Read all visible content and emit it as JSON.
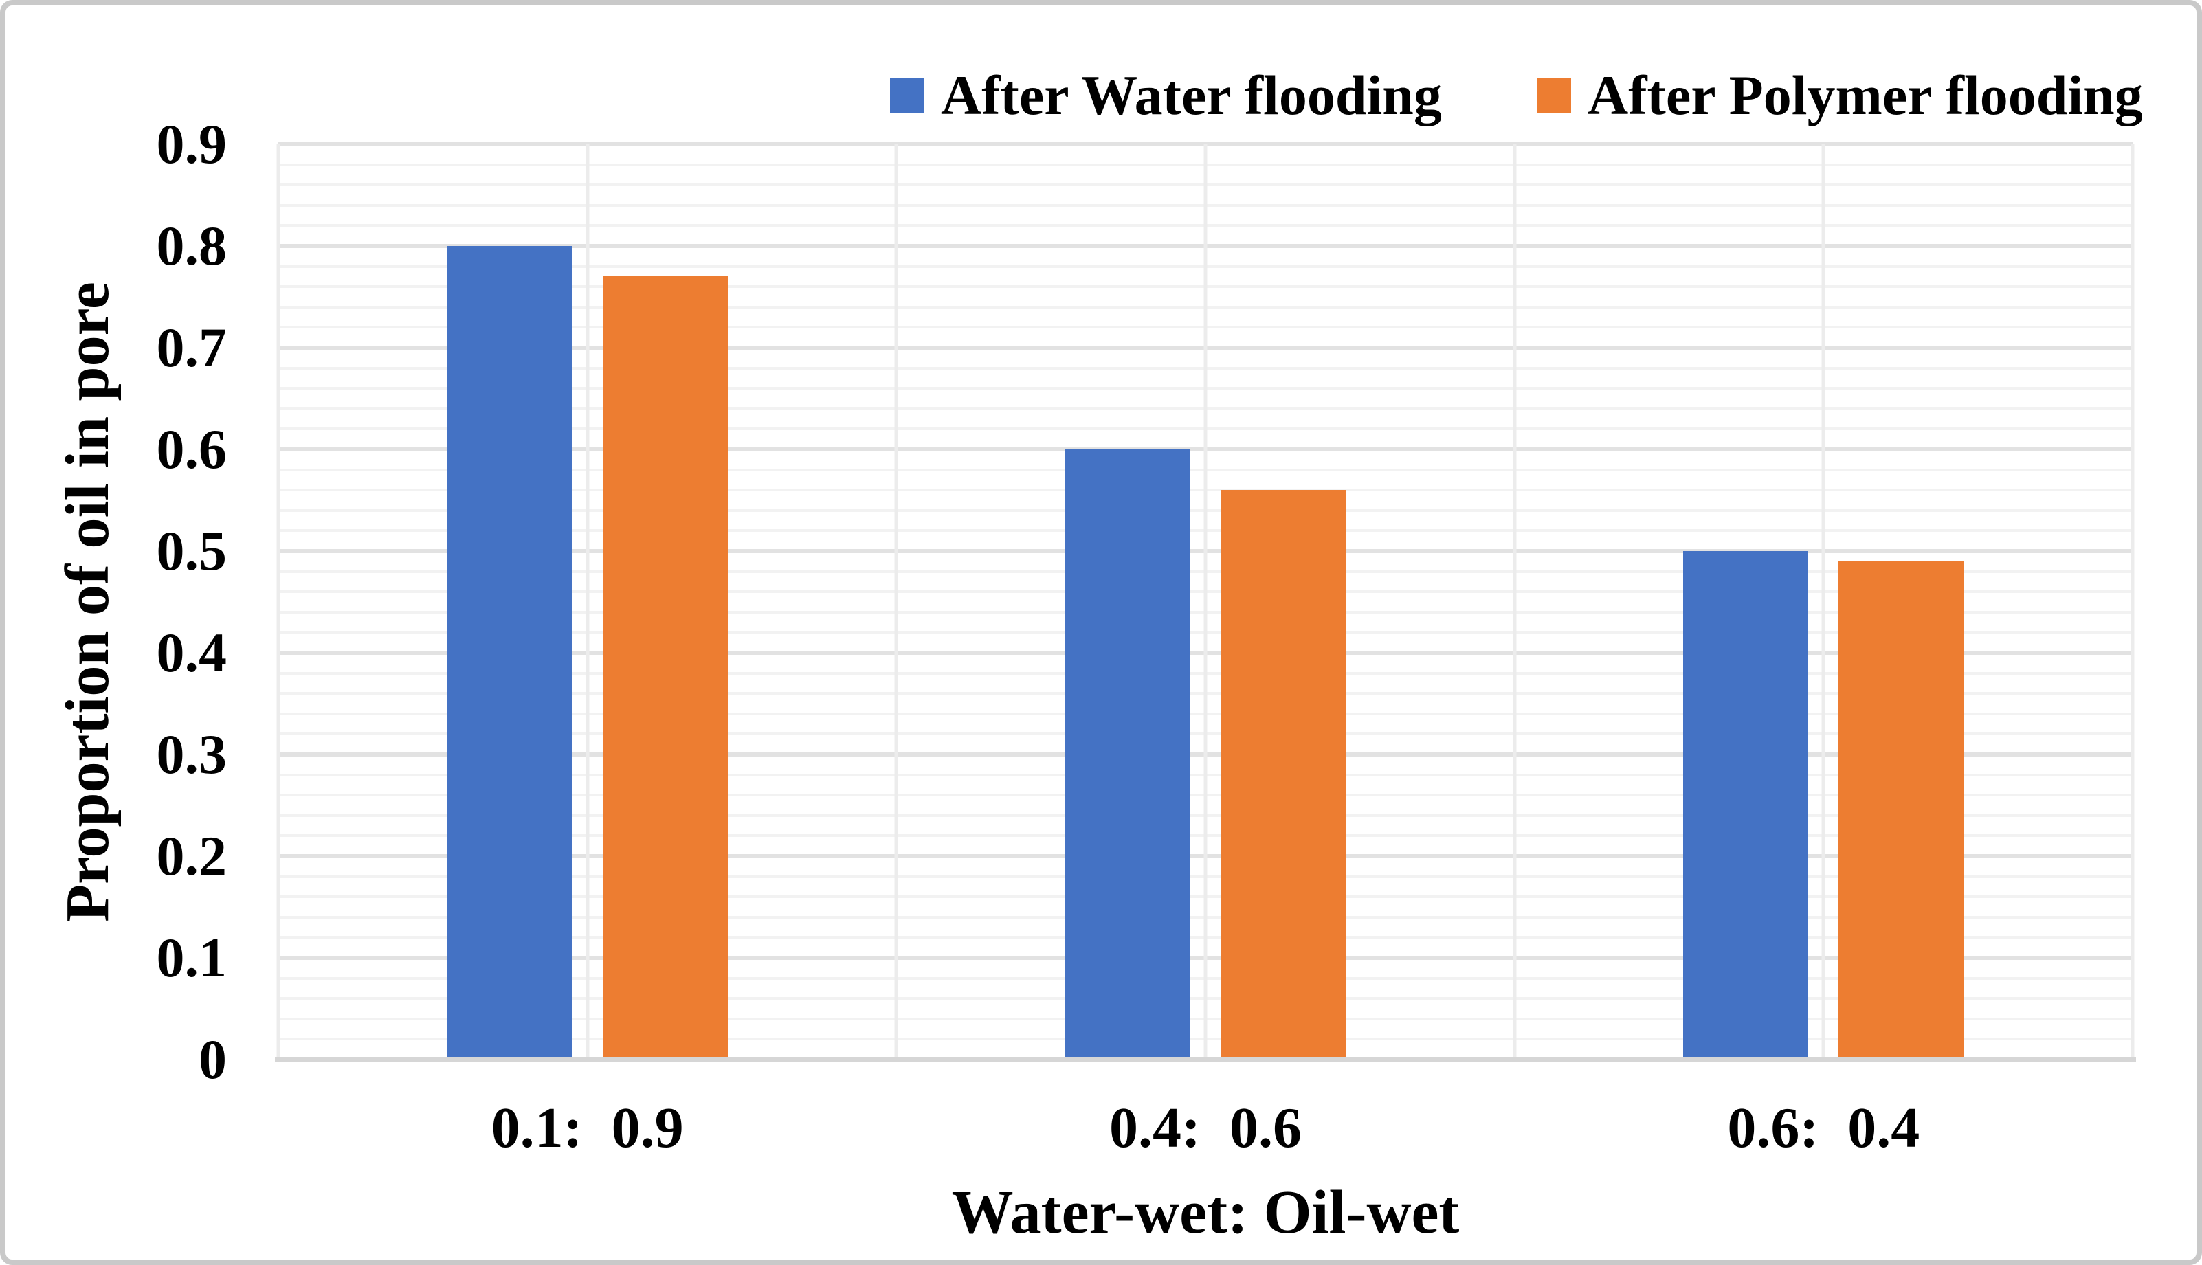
{
  "chart_data": {
    "type": "bar",
    "categories": [
      "0.1:  0.9",
      "0.4:  0.6",
      "0.6:  0.4"
    ],
    "series": [
      {
        "name": "After Water flooding",
        "color": "#4472C4",
        "values": [
          0.8,
          0.6,
          0.5
        ]
      },
      {
        "name": "After Polymer flooding",
        "color": "#ED7D31",
        "values": [
          0.77,
          0.56,
          0.49
        ]
      }
    ],
    "xlabel": "Water-wet: Oil-wet",
    "ylabel": "Proportion of oil in pore",
    "ylim": [
      0,
      0.9
    ],
    "y_major_step": 0.1,
    "y_minor_step": 0.02,
    "y_tick_labels": [
      "0",
      "0.1",
      "0.2",
      "0.3",
      "0.4",
      "0.5",
      "0.6",
      "0.7",
      "0.8",
      "0.9"
    ],
    "legend_position": "top-right",
    "grid": {
      "major_color": "#E2E2E2",
      "minor_color": "#F2F2F2",
      "vertical_color": "#ECECEC",
      "axis_line_color": "#D6D6D6",
      "frame_border_color": "#C9C9C9",
      "text_color": "#000000"
    }
  }
}
